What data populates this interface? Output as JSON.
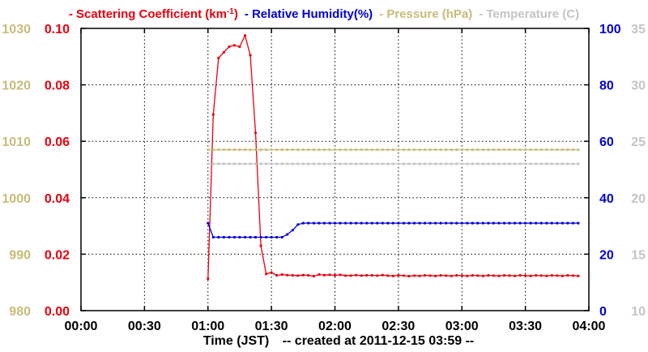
{
  "chart_data": {
    "type": "line",
    "legend": [
      {
        "id": "scatter",
        "marker": "-",
        "text": "Scattering Coefficient (km",
        "sup": "-1",
        "suffix": ")",
        "color": "#e8000e"
      },
      {
        "id": "rh",
        "marker": "-",
        "text": "Relative Humidity(%)",
        "color": "#0000d8"
      },
      {
        "id": "pressure",
        "marker": "-",
        "text": "Pressure (hPa)",
        "color": "#c8bb7a"
      },
      {
        "id": "temp",
        "marker": "-",
        "text": "Temperature (C)",
        "color": "#c4c4c4"
      }
    ],
    "xlabel": "Time (JST)",
    "created_note": "-- created at 2011-12-15 03:59 --",
    "x_range": [
      0,
      240
    ],
    "x_ticks": [
      {
        "v": 0,
        "label": "00:00"
      },
      {
        "v": 30,
        "label": "00:30"
      },
      {
        "v": 60,
        "label": "01:00"
      },
      {
        "v": 90,
        "label": "01:30"
      },
      {
        "v": 120,
        "label": "02:00"
      },
      {
        "v": 150,
        "label": "02:30"
      },
      {
        "v": 180,
        "label": "03:00"
      },
      {
        "v": 210,
        "label": "03:30"
      },
      {
        "v": 240,
        "label": "04:00"
      }
    ],
    "grid": true,
    "axes": {
      "pressure": {
        "range": [
          980,
          1030
        ],
        "ticks": [
          "980",
          "990",
          "1000",
          "1010",
          "1020",
          "1030"
        ],
        "side": "left-outer",
        "color": "#c8bb7a"
      },
      "scatter": {
        "range": [
          0,
          0.1
        ],
        "ticks": [
          "0.00",
          "0.02",
          "0.04",
          "0.06",
          "0.08",
          "0.10"
        ],
        "side": "left-inner",
        "color": "#e8000e"
      },
      "rh": {
        "range": [
          0,
          100
        ],
        "ticks": [
          "0",
          "20",
          "40",
          "60",
          "80",
          "100"
        ],
        "side": "right-inner",
        "color": "#0000d8"
      },
      "temp": {
        "range": [
          10,
          35
        ],
        "ticks": [
          "10",
          "15",
          "20",
          "25",
          "30",
          "35"
        ],
        "side": "right-outer",
        "color": "#c4c4c4"
      }
    },
    "series": [
      {
        "axis": "scatter",
        "color": "#e8000e",
        "x": [
          60,
          62.5,
          65,
          67.5,
          70,
          72.5,
          75,
          77.5,
          80,
          82.5,
          85,
          87.5,
          90,
          92.5,
          95,
          97.5,
          100,
          102.5,
          105,
          107.5,
          110,
          112.5,
          115,
          117.5,
          120,
          122.5,
          125,
          127.5,
          130,
          132.5,
          135,
          137.5,
          140,
          142.5,
          145,
          147.5,
          150,
          152.5,
          155,
          157.5,
          160,
          162.5,
          165,
          167.5,
          170,
          172.5,
          175,
          177.5,
          180,
          182.5,
          185,
          187.5,
          190,
          192.5,
          195,
          197.5,
          200,
          202.5,
          205,
          207.5,
          210,
          212.5,
          215,
          217.5,
          220,
          222.5,
          225,
          227.5,
          230,
          232.5,
          235
        ],
        "y": [
          0.0113,
          0.0695,
          0.0895,
          0.0915,
          0.0935,
          0.094,
          0.0935,
          0.0975,
          0.0905,
          0.063,
          0.023,
          0.013,
          0.0135,
          0.0125,
          0.0128,
          0.0126,
          0.0125,
          0.0124,
          0.0126,
          0.0125,
          0.0122,
          0.0128,
          0.0126,
          0.0127,
          0.0125,
          0.0127,
          0.0124,
          0.0124,
          0.0126,
          0.0124,
          0.0125,
          0.0125,
          0.0124,
          0.0126,
          0.0124,
          0.0123,
          0.0125,
          0.0124,
          0.0122,
          0.0124,
          0.0123,
          0.0125,
          0.0124,
          0.0123,
          0.0125,
          0.0124,
          0.0123,
          0.0125,
          0.0124,
          0.0123,
          0.0125,
          0.0124,
          0.0123,
          0.0125,
          0.0124,
          0.0123,
          0.0125,
          0.0124,
          0.0123,
          0.0125,
          0.0124,
          0.0123,
          0.0125,
          0.0124,
          0.0123,
          0.0125,
          0.0124,
          0.0123,
          0.0125,
          0.0124,
          0.0123
        ]
      },
      {
        "axis": "rh",
        "color": "#0000d8",
        "x": [
          60,
          62.5,
          65,
          67.5,
          70,
          72.5,
          75,
          77.5,
          80,
          82.5,
          85,
          87.5,
          90,
          92.5,
          95,
          97.5,
          100,
          102.5,
          105,
          107.5,
          110,
          112.5,
          115,
          117.5,
          120,
          122.5,
          125,
          127.5,
          130,
          132.5,
          135,
          137.5,
          140,
          142.5,
          145,
          147.5,
          150,
          152.5,
          155,
          157.5,
          160,
          162.5,
          165,
          167.5,
          170,
          172.5,
          175,
          177.5,
          180,
          182.5,
          185,
          187.5,
          190,
          192.5,
          195,
          197.5,
          200,
          202.5,
          205,
          207.5,
          210,
          212.5,
          215,
          217.5,
          220,
          222.5,
          225,
          227.5,
          230,
          232.5,
          235
        ],
        "y": [
          31,
          26,
          26,
          26,
          26,
          26,
          26,
          26,
          26,
          26,
          26,
          26,
          26,
          26,
          26,
          27,
          28.5,
          30.5,
          31,
          31,
          31,
          31,
          31,
          31,
          31,
          31,
          31,
          31,
          31,
          31,
          31,
          31,
          31,
          31,
          31,
          31,
          31,
          31,
          31,
          31,
          31,
          31,
          31,
          31,
          31,
          31,
          31,
          31,
          31,
          31,
          31,
          31,
          31,
          31,
          31,
          31,
          31,
          31,
          31,
          31,
          31,
          31,
          31,
          31,
          31,
          31,
          31,
          31,
          31,
          31,
          31
        ]
      },
      {
        "axis": "pressure",
        "color": "#c8bb7a",
        "x": [
          60,
          62.5,
          65,
          67.5,
          70,
          72.5,
          75,
          77.5,
          80,
          82.5,
          85,
          87.5,
          90,
          92.5,
          95,
          97.5,
          100,
          102.5,
          105,
          107.5,
          110,
          112.5,
          115,
          117.5,
          120,
          122.5,
          125,
          127.5,
          130,
          132.5,
          135,
          137.5,
          140,
          142.5,
          145,
          147.5,
          150,
          152.5,
          155,
          157.5,
          160,
          162.5,
          165,
          167.5,
          170,
          172.5,
          175,
          177.5,
          180,
          182.5,
          185,
          187.5,
          190,
          192.5,
          195,
          197.5,
          200,
          202.5,
          205,
          207.5,
          210,
          212.5,
          215,
          217.5,
          220,
          222.5,
          225,
          227.5,
          230,
          232.5,
          235
        ],
        "y": [
          1008.5,
          1008.5,
          1008.5,
          1008.5,
          1008.5,
          1008.5,
          1008.5,
          1008.5,
          1008.5,
          1008.5,
          1008.5,
          1008.5,
          1008.5,
          1008.5,
          1008.5,
          1008.5,
          1008.5,
          1008.5,
          1008.5,
          1008.5,
          1008.5,
          1008.5,
          1008.5,
          1008.5,
          1008.5,
          1008.5,
          1008.5,
          1008.5,
          1008.5,
          1008.5,
          1008.5,
          1008.5,
          1008.5,
          1008.5,
          1008.5,
          1008.5,
          1008.5,
          1008.5,
          1008.5,
          1008.5,
          1008.5,
          1008.5,
          1008.5,
          1008.5,
          1008.5,
          1008.5,
          1008.5,
          1008.5,
          1008.5,
          1008.5,
          1008.5,
          1008.5,
          1008.5,
          1008.5,
          1008.5,
          1008.5,
          1008.5,
          1008.5,
          1008.5,
          1008.5,
          1008.5,
          1008.5,
          1008.5,
          1008.5,
          1008.5,
          1008.5,
          1008.5,
          1008.5,
          1008.5,
          1008.5,
          1008.5
        ]
      },
      {
        "axis": "temp",
        "color": "#c4c4c4",
        "x": [
          60,
          62.5,
          65,
          67.5,
          70,
          72.5,
          75,
          77.5,
          80,
          82.5,
          85,
          87.5,
          90,
          92.5,
          95,
          97.5,
          100,
          102.5,
          105,
          107.5,
          110,
          112.5,
          115,
          117.5,
          120,
          122.5,
          125,
          127.5,
          130,
          132.5,
          135,
          137.5,
          140,
          142.5,
          145,
          147.5,
          150,
          152.5,
          155,
          157.5,
          160,
          162.5,
          165,
          167.5,
          170,
          172.5,
          175,
          177.5,
          180,
          182.5,
          185,
          187.5,
          190,
          192.5,
          195,
          197.5,
          200,
          202.5,
          205,
          207.5,
          210,
          212.5,
          215,
          217.5,
          220,
          222.5,
          225,
          227.5,
          230,
          232.5,
          235
        ],
        "y": [
          23.0,
          23.0,
          23.0,
          23.0,
          23.0,
          23.0,
          23.0,
          23.0,
          23.0,
          23.0,
          23.0,
          23.0,
          23.0,
          23.0,
          23.0,
          23.0,
          23.0,
          23.0,
          23.0,
          23.0,
          23.0,
          23.0,
          23.0,
          23.0,
          23.0,
          23.0,
          23.0,
          23.0,
          23.0,
          23.0,
          23.0,
          23.0,
          23.0,
          23.0,
          23.0,
          23.0,
          23.0,
          23.0,
          23.0,
          23.0,
          23.0,
          23.0,
          23.0,
          23.0,
          23.0,
          23.0,
          23.0,
          23.0,
          23.0,
          23.0,
          23.0,
          23.0,
          23.0,
          23.0,
          23.0,
          23.0,
          23.0,
          23.0,
          23.0,
          23.0,
          23.0,
          23.0,
          23.0,
          23.0,
          23.0,
          23.0,
          23.0,
          23.0,
          23.0,
          23.0,
          23.0
        ]
      }
    ]
  }
}
